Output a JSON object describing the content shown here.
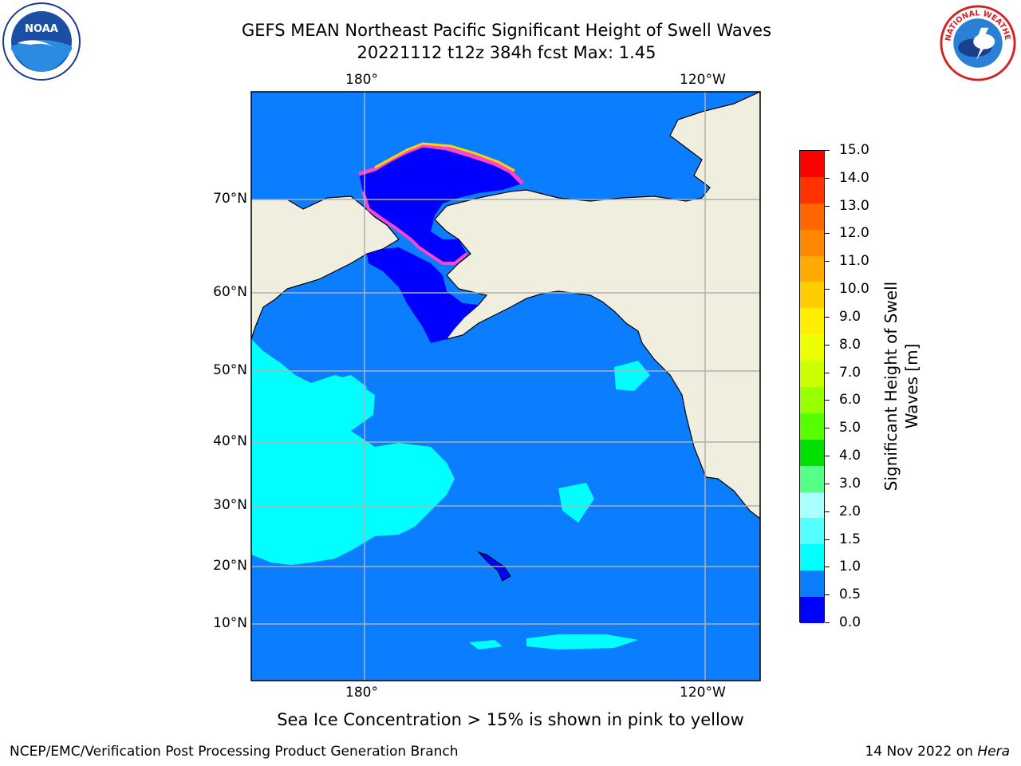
{
  "title": {
    "line1": "GEFS MEAN Northeast Pacific Significant Height of Swell Waves",
    "line2": "20221112 t12z 384h fcst   Max: 1.45"
  },
  "map": {
    "lon_labels_top": [
      "180°",
      "120°W"
    ],
    "lon_labels_bottom": [
      "180°",
      "120°W"
    ],
    "lat_labels": [
      "70°N",
      "60°N",
      "50°N",
      "40°N",
      "30°N",
      "20°N",
      "10°N"
    ],
    "colors": {
      "ocean": "#0a7eff",
      "swell_1_to_1_5": "#00ffff",
      "swell_0_to_0_5": "#0000ff",
      "land": "#efeedf",
      "ice_pink": "#ff44cc",
      "ice_yellow": "#ffd200",
      "grid": "#b0b0b0"
    }
  },
  "colorbar": {
    "title_line1": "Significant Height of Swell",
    "title_line2": "Waves [m]",
    "tick_labels": [
      "15.0",
      "14.0",
      "13.0",
      "12.0",
      "11.0",
      "10.0",
      "9.0",
      "8.0",
      "7.0",
      "6.0",
      "5.0",
      "4.0",
      "3.0",
      "2.0",
      "1.5",
      "1.0",
      "0.5",
      "0.0"
    ],
    "segment_colors_top_to_bottom": [
      "#ff0000",
      "#ff3300",
      "#ff6600",
      "#ff8800",
      "#ffaa00",
      "#ffcc00",
      "#ffee00",
      "#eeff00",
      "#ccff00",
      "#99ff00",
      "#55ff00",
      "#00e000",
      "#55ff88",
      "#aaffff",
      "#55ffff",
      "#00ffff",
      "#0a7eff",
      "#0000ff"
    ]
  },
  "footer": {
    "note": "Sea Ice Concentration > 15% is shown in pink to yellow",
    "credit": "NCEP/EMC/Verification Post Processing Product Generation Branch",
    "date": "14 Nov 2022 on",
    "machine": "Hera"
  },
  "logos": {
    "noaa": {
      "text": "NOAA",
      "icon": "noaa-logo-icon"
    },
    "nws": {
      "text": "NATIONAL WEATHER SERVICE",
      "icon": "nws-logo-icon"
    }
  }
}
